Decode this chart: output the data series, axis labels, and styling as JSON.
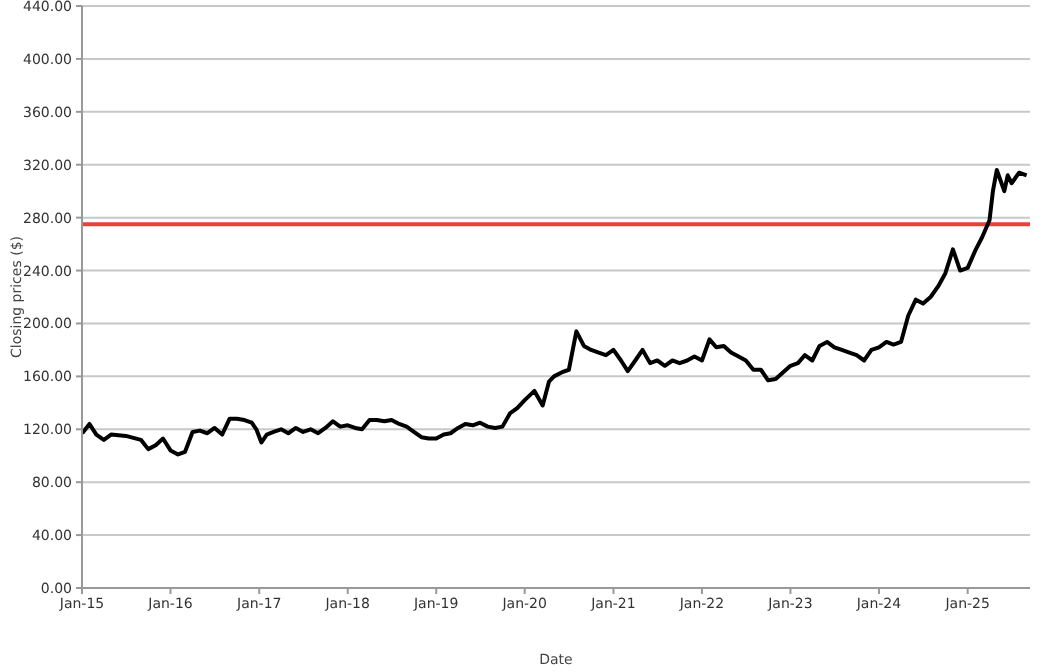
{
  "chart_data": {
    "type": "line",
    "xlabel": "Date",
    "ylabel": "Closing prices ($)",
    "x": [
      "2015-01-02",
      "2015-02-01",
      "2015-03-01",
      "2015-04-01",
      "2015-05-01",
      "2015-07-01",
      "2015-09-01",
      "2015-10-01",
      "2015-11-01",
      "2015-12-01",
      "2016-01-01",
      "2016-02-01",
      "2016-03-01",
      "2016-04-01",
      "2016-05-01",
      "2016-06-01",
      "2016-07-01",
      "2016-08-01",
      "2016-09-01",
      "2016-10-01",
      "2016-11-01",
      "2016-12-01",
      "2016-12-20",
      "2017-01-10",
      "2017-02-01",
      "2017-03-01",
      "2017-04-01",
      "2017-05-01",
      "2017-06-01",
      "2017-07-01",
      "2017-08-01",
      "2017-09-01",
      "2017-10-01",
      "2017-11-01",
      "2017-12-01",
      "2018-01-01",
      "2018-02-01",
      "2018-03-01",
      "2018-04-01",
      "2018-05-01",
      "2018-06-01",
      "2018-07-01",
      "2018-08-01",
      "2018-09-01",
      "2018-10-01",
      "2018-11-01",
      "2018-12-01",
      "2019-01-01",
      "2019-02-01",
      "2019-03-01",
      "2019-04-01",
      "2019-05-01",
      "2019-06-01",
      "2019-07-01",
      "2019-08-01",
      "2019-09-01",
      "2019-10-01",
      "2019-11-01",
      "2019-12-01",
      "2020-01-01",
      "2020-02-10",
      "2020-03-15",
      "2020-04-10",
      "2020-05-01",
      "2020-06-01",
      "2020-07-01",
      "2020-08-01",
      "2020-09-01",
      "2020-10-01",
      "2020-11-01",
      "2020-12-01",
      "2021-01-01",
      "2021-02-01",
      "2021-03-01",
      "2021-04-01",
      "2021-05-01",
      "2021-06-01",
      "2021-07-01",
      "2021-08-01",
      "2021-09-01",
      "2021-10-01",
      "2021-11-01",
      "2021-12-01",
      "2022-01-01",
      "2022-02-01",
      "2022-03-01",
      "2022-04-01",
      "2022-05-01",
      "2022-06-01",
      "2022-07-01",
      "2022-08-01",
      "2022-09-01",
      "2022-10-01",
      "2022-11-01",
      "2023-01-01",
      "2023-02-01",
      "2023-03-01",
      "2023-04-01",
      "2023-05-01",
      "2023-06-01",
      "2023-07-01",
      "2023-08-01",
      "2023-09-01",
      "2023-10-01",
      "2023-11-01",
      "2023-12-01",
      "2024-01-01",
      "2024-02-01",
      "2024-03-01",
      "2024-04-01",
      "2024-05-01",
      "2024-06-01",
      "2024-07-01",
      "2024-08-01",
      "2024-09-01",
      "2024-10-01",
      "2024-11-01",
      "2024-12-01",
      "2025-01-01",
      "2025-02-01",
      "2025-03-01",
      "2025-04-01",
      "2025-04-15",
      "2025-05-01",
      "2025-06-01",
      "2025-06-15",
      "2025-07-01",
      "2025-08-01",
      "2025-09-01"
    ],
    "series": [
      {
        "color": "#000000",
        "values": [
          117,
          124,
          116,
          112,
          116,
          115,
          112,
          105,
          108,
          113,
          104,
          101,
          103,
          118,
          119,
          117,
          121,
          116,
          128,
          128,
          127,
          125,
          120,
          110,
          116,
          118,
          120,
          117,
          121,
          118,
          120,
          117,
          121,
          126,
          122,
          123,
          121,
          120,
          127,
          127,
          126,
          127,
          124,
          122,
          118,
          114,
          113,
          113,
          116,
          117,
          121,
          124,
          123,
          125,
          122,
          121,
          122,
          132,
          136,
          142,
          149,
          138,
          156,
          160,
          163,
          165,
          194,
          183,
          180,
          178,
          176,
          180,
          172,
          164,
          172,
          180,
          170,
          172,
          168,
          172,
          170,
          172,
          175,
          172,
          188,
          182,
          183,
          178,
          175,
          172,
          165,
          165,
          157,
          158,
          168,
          170,
          176,
          172,
          183,
          186,
          182,
          180,
          178,
          176,
          172,
          180,
          182,
          186,
          184,
          186,
          206,
          218,
          215,
          220,
          228,
          238,
          256,
          240,
          242,
          255,
          265,
          278,
          300,
          316,
          300,
          312,
          306,
          314,
          312
        ]
      }
    ],
    "xlim": [
      "2015-01-01",
      "2025-09-15"
    ],
    "xticks": [
      {
        "value": "2015-01-01",
        "label": "Jan-15"
      },
      {
        "value": "2016-01-01",
        "label": "Jan-16"
      },
      {
        "value": "2017-01-01",
        "label": "Jan-17"
      },
      {
        "value": "2018-01-01",
        "label": "Jan-18"
      },
      {
        "value": "2019-01-01",
        "label": "Jan-19"
      },
      {
        "value": "2020-01-01",
        "label": "Jan-20"
      },
      {
        "value": "2021-01-01",
        "label": "Jan-21"
      },
      {
        "value": "2022-01-01",
        "label": "Jan-22"
      },
      {
        "value": "2023-01-01",
        "label": "Jan-23"
      },
      {
        "value": "2024-01-01",
        "label": "Jan-24"
      },
      {
        "value": "2025-01-01",
        "label": "Jan-25"
      }
    ],
    "ylim": [
      0,
      440
    ],
    "yticks": [
      {
        "value": 0,
        "label": "0.00"
      },
      {
        "value": 40,
        "label": "40.00"
      },
      {
        "value": 80,
        "label": "80.00"
      },
      {
        "value": 120,
        "label": "120.00"
      },
      {
        "value": 160,
        "label": "160.00"
      },
      {
        "value": 200,
        "label": "200.00"
      },
      {
        "value": 240,
        "label": "240.00"
      },
      {
        "value": 280,
        "label": "280.00"
      },
      {
        "value": 320,
        "label": "320.00"
      },
      {
        "value": 360,
        "label": "360.00"
      },
      {
        "value": 400,
        "label": "400.00"
      },
      {
        "value": 440,
        "label": "440.00"
      }
    ],
    "ref_lines": [
      {
        "axis": "y",
        "value": 275,
        "color": "#e8413c"
      }
    ],
    "grid": "y",
    "marker": "none",
    "line_style": "solid",
    "legend": false
  }
}
